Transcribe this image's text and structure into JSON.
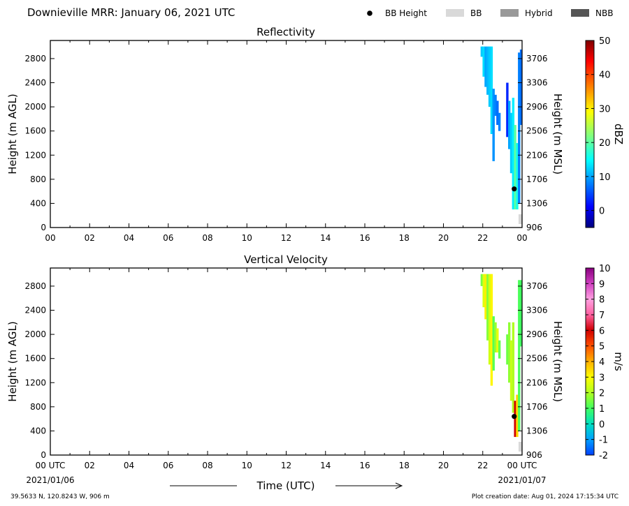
{
  "header": {
    "title": "Downieville MRR:  January 06, 2021 UTC",
    "legend": [
      {
        "label": "BB Height",
        "kind": "dot",
        "color": "#000000"
      },
      {
        "label": "BB",
        "kind": "rect",
        "color": "#d9d9d9"
      },
      {
        "label": "Hybrid",
        "kind": "rect",
        "color": "#999999"
      },
      {
        "label": "NBB",
        "kind": "rect",
        "color": "#555555"
      }
    ]
  },
  "axes": {
    "x_ticks": [
      "00",
      "02",
      "04",
      "06",
      "08",
      "10",
      "12",
      "14",
      "16",
      "18",
      "20",
      "22",
      "00"
    ],
    "x_ticks_bottom": [
      "00 UTC",
      "02",
      "04",
      "06",
      "08",
      "10",
      "12",
      "14",
      "16",
      "18",
      "20",
      "22",
      "00 UTC"
    ],
    "y_left_ticks": [
      0,
      400,
      800,
      1200,
      1600,
      2000,
      2400,
      2800
    ],
    "y_right_ticks": [
      "906",
      "1306",
      "1706",
      "2106",
      "2506",
      "2906",
      "3306",
      "3706"
    ],
    "ylabel_left": "Height (m AGL)",
    "ylabel_right": "Height (m MSL)",
    "xlabel": "Time (UTC)",
    "date_start": "2021/01/06",
    "date_end": "2021/01/07"
  },
  "footer": {
    "location": "39.5633 N, 120.8243 W, 906 m",
    "created": "Plot creation date: Aug 01, 2024 17:15:34 UTC"
  },
  "chart_data": [
    {
      "type": "heatmap",
      "title": "Reflectivity",
      "xlabel": "",
      "ylabel": "Height (m AGL)",
      "y2label": "Height (m MSL)",
      "xlim_hours": [
        0,
        24
      ],
      "ylim": [
        0,
        3100
      ],
      "colorbar": {
        "label": "dBZ",
        "ticks": [
          0,
          10,
          20,
          30,
          40,
          50
        ],
        "range": [
          -5,
          50
        ],
        "scheme": "jet"
      },
      "bb_height": [
        {
          "hour": 23.6,
          "height": 640
        }
      ],
      "bb_type": [
        {
          "hour_start": 23.82,
          "hour_end": 24.0,
          "type": "BB"
        }
      ],
      "columns": [
        {
          "hour": 21.95,
          "bottom": 2830,
          "top": 3000,
          "value": 12
        },
        {
          "hour": 22.05,
          "bottom": 2500,
          "top": 3000,
          "value": 13
        },
        {
          "hour": 22.15,
          "bottom": 2330,
          "top": 3000,
          "value": 10
        },
        {
          "hour": 22.25,
          "bottom": 2200,
          "top": 3000,
          "value": 11
        },
        {
          "hour": 22.35,
          "bottom": 2000,
          "top": 3000,
          "value": 12
        },
        {
          "hour": 22.45,
          "bottom": 1550,
          "top": 3000,
          "value": 13
        },
        {
          "hour": 22.55,
          "bottom": 1100,
          "top": 2300,
          "value": 9
        },
        {
          "hour": 22.65,
          "bottom": 1850,
          "top": 2200,
          "value": 8
        },
        {
          "hour": 22.75,
          "bottom": 1700,
          "top": 2100,
          "value": 7
        },
        {
          "hour": 22.85,
          "bottom": 1600,
          "top": 1900,
          "value": 8
        },
        {
          "hour": 23.25,
          "bottom": 1500,
          "top": 2400,
          "value": 3
        },
        {
          "hour": 23.35,
          "bottom": 1300,
          "top": 2100,
          "value": 10
        },
        {
          "hour": 23.45,
          "bottom": 900,
          "top": 1900,
          "value": 12
        },
        {
          "hour": 23.55,
          "bottom": 300,
          "top": 2150,
          "value": 14
        },
        {
          "hour": 23.65,
          "bottom": 300,
          "top": 1700,
          "value": 20
        },
        {
          "hour": 23.75,
          "bottom": 300,
          "top": 1400,
          "value": 16
        },
        {
          "hour": 23.85,
          "bottom": 400,
          "top": 2900,
          "value": 8
        },
        {
          "hour": 23.95,
          "bottom": 1700,
          "top": 2950,
          "value": 7
        }
      ]
    },
    {
      "type": "heatmap",
      "title": "Vertical Velocity",
      "xlabel": "Time (UTC)",
      "ylabel": "Height (m AGL)",
      "y2label": "Height (m MSL)",
      "xlim_hours": [
        0,
        24
      ],
      "ylim": [
        0,
        3100
      ],
      "colorbar": {
        "label": "m/s",
        "ticks": [
          -2,
          -1,
          0,
          1,
          2,
          3,
          4,
          5,
          6,
          7,
          8,
          9,
          10
        ],
        "range": [
          -2,
          10
        ],
        "scheme": "velocity"
      },
      "bb_height": [
        {
          "hour": 23.6,
          "height": 640
        }
      ],
      "bb_type": [
        {
          "hour_start": 23.82,
          "hour_end": 24.0,
          "type": "BB"
        }
      ],
      "columns": [
        {
          "hour": 21.95,
          "bottom": 2800,
          "top": 3000,
          "value": 1.5
        },
        {
          "hour": 22.05,
          "bottom": 2450,
          "top": 3000,
          "value": 2.6
        },
        {
          "hour": 22.15,
          "bottom": 2250,
          "top": 3000,
          "value": 3.2
        },
        {
          "hour": 22.25,
          "bottom": 1900,
          "top": 3000,
          "value": 1.6
        },
        {
          "hour": 22.35,
          "bottom": 1500,
          "top": 3000,
          "value": 2.4
        },
        {
          "hour": 22.45,
          "bottom": 1150,
          "top": 3000,
          "value": 3.1
        },
        {
          "hour": 22.55,
          "bottom": 1400,
          "top": 2300,
          "value": 1.2
        },
        {
          "hour": 22.65,
          "bottom": 1700,
          "top": 2200,
          "value": 1.8
        },
        {
          "hour": 22.75,
          "bottom": 1700,
          "top": 2100,
          "value": 2.7
        },
        {
          "hour": 22.85,
          "bottom": 1600,
          "top": 1900,
          "value": 1.3
        },
        {
          "hour": 23.25,
          "bottom": 1500,
          "top": 2000,
          "value": 1.4
        },
        {
          "hour": 23.35,
          "bottom": 1200,
          "top": 2200,
          "value": 1.7
        },
        {
          "hour": 23.45,
          "bottom": 900,
          "top": 1900,
          "value": 2.3
        },
        {
          "hour": 23.55,
          "bottom": 700,
          "top": 2200,
          "value": 2.0
        },
        {
          "hour": 23.65,
          "bottom": 300,
          "top": 900,
          "value": 6.0
        },
        {
          "hour": 23.75,
          "bottom": 300,
          "top": 1000,
          "value": 3.5
        },
        {
          "hour": 23.85,
          "bottom": 400,
          "top": 2900,
          "value": 1.1
        },
        {
          "hour": 23.95,
          "bottom": 1800,
          "top": 2900,
          "value": 1.0
        }
      ]
    }
  ]
}
